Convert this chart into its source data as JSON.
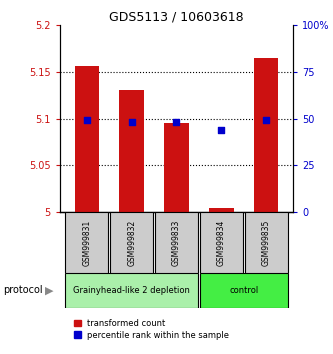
{
  "title": "GDS5113 / 10603618",
  "samples": [
    "GSM999831",
    "GSM999832",
    "GSM999833",
    "GSM999834",
    "GSM999835"
  ],
  "red_values": [
    5.156,
    5.13,
    5.095,
    5.005,
    5.165
  ],
  "blue_values": [
    49,
    48,
    48,
    44,
    49
  ],
  "ylim_left": [
    5.0,
    5.2
  ],
  "ylim_right": [
    0,
    100
  ],
  "yticks_left": [
    5.0,
    5.05,
    5.1,
    5.15,
    5.2
  ],
  "ytick_labels_left": [
    "5",
    "5.05",
    "5.1",
    "5.15",
    "5.2"
  ],
  "yticks_right": [
    0,
    25,
    50,
    75,
    100
  ],
  "ytick_labels_right": [
    "0",
    "25",
    "50",
    "75",
    "100%"
  ],
  "grid_lines": [
    5.05,
    5.1,
    5.15
  ],
  "groups": [
    {
      "label": "Grainyhead-like 2 depletion",
      "indices": [
        0,
        1,
        2
      ],
      "color": "#aaf0aa"
    },
    {
      "label": "control",
      "indices": [
        3,
        4
      ],
      "color": "#44ee44"
    }
  ],
  "bar_color": "#cc1111",
  "dot_color": "#0000cc",
  "bar_bottom": 5.0,
  "bar_width": 0.55,
  "dot_size": 25,
  "legend_red": "transformed count",
  "legend_blue": "percentile rank within the sample",
  "protocol_label": "protocol",
  "sample_box_color": "#cccccc",
  "left_tick_color": "#cc1111",
  "right_tick_color": "#0000cc"
}
